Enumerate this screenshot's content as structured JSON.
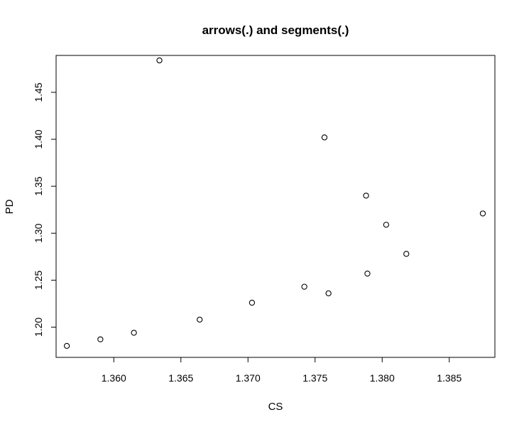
{
  "chart_data": {
    "type": "scatter",
    "title": "arrows(.) and segments(.)",
    "xlabel": "CS",
    "ylabel": "PD",
    "xlim": [
      1.3557,
      1.3884
    ],
    "ylim": [
      1.1678,
      1.4893
    ],
    "x_ticks": [
      1.36,
      1.365,
      1.37,
      1.375,
      1.38,
      1.385
    ],
    "x_tick_labels": [
      "1.360",
      "1.365",
      "1.370",
      "1.375",
      "1.380",
      "1.385"
    ],
    "y_ticks": [
      1.2,
      1.25,
      1.3,
      1.35,
      1.4,
      1.45
    ],
    "y_tick_labels": [
      "1.20",
      "1.25",
      "1.30",
      "1.35",
      "1.40",
      "1.45"
    ],
    "grid": false,
    "marker": "open-circle",
    "points": [
      {
        "x": 1.3565,
        "y": 1.18
      },
      {
        "x": 1.359,
        "y": 1.187
      },
      {
        "x": 1.3615,
        "y": 1.194
      },
      {
        "x": 1.3634,
        "y": 1.484
      },
      {
        "x": 1.3664,
        "y": 1.208
      },
      {
        "x": 1.3703,
        "y": 1.226
      },
      {
        "x": 1.3742,
        "y": 1.243
      },
      {
        "x": 1.3757,
        "y": 1.402
      },
      {
        "x": 1.376,
        "y": 1.236
      },
      {
        "x": 1.3788,
        "y": 1.34
      },
      {
        "x": 1.3789,
        "y": 1.257
      },
      {
        "x": 1.3803,
        "y": 1.309
      },
      {
        "x": 1.3818,
        "y": 1.278
      },
      {
        "x": 1.3875,
        "y": 1.321
      }
    ]
  }
}
